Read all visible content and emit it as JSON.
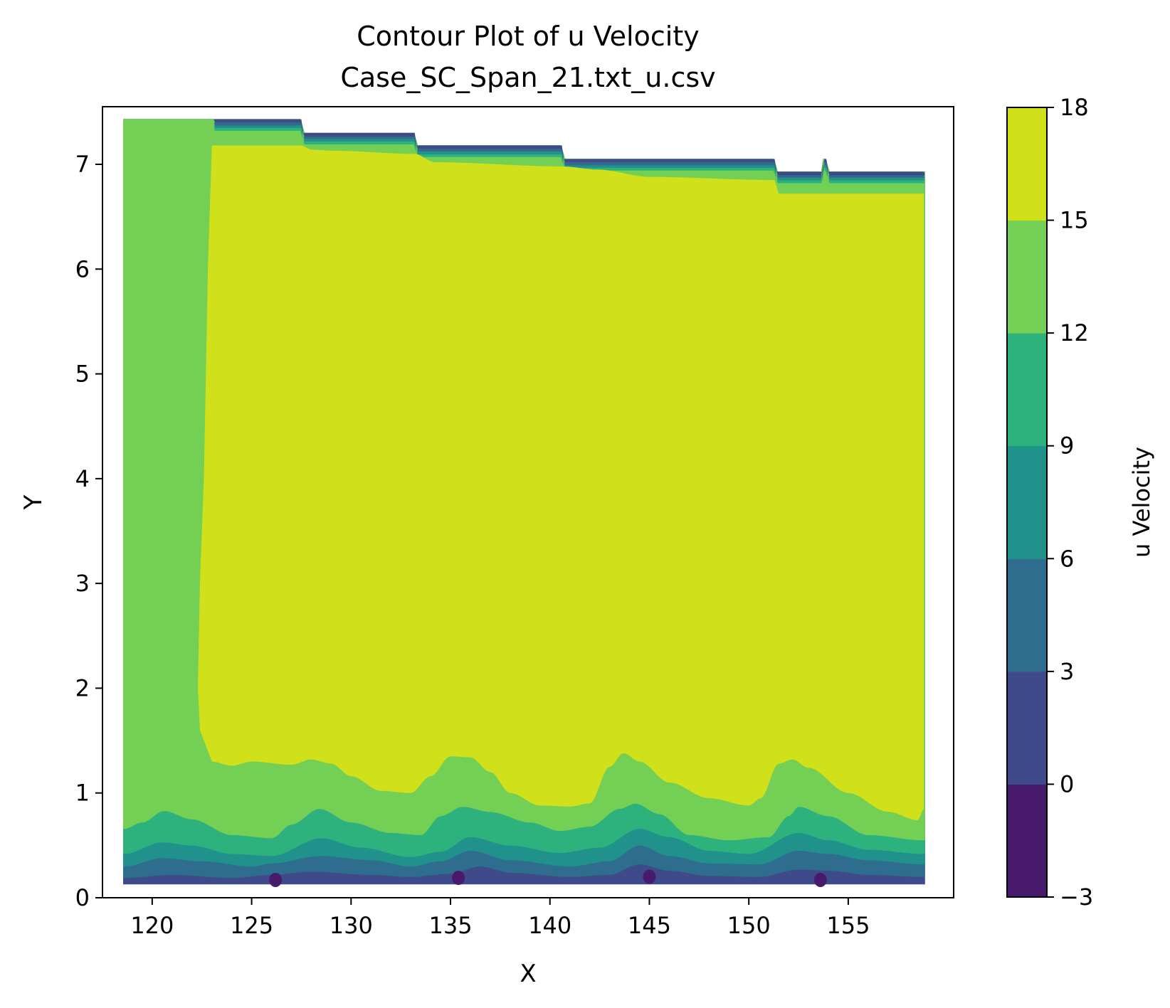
{
  "chart_data": {
    "type": "contour",
    "title": "Contour Plot of u Velocity",
    "subtitle": "Case_SC_Span_21.txt_u.csv",
    "xlabel": "X",
    "ylabel": "Y",
    "colorbar_label": "u Velocity",
    "xlim": [
      117.5,
      160.3
    ],
    "ylim": [
      0,
      7.55
    ],
    "x_ticks": [
      120,
      125,
      130,
      135,
      140,
      145,
      150,
      155
    ],
    "y_ticks": [
      0,
      1,
      2,
      3,
      4,
      5,
      6,
      7
    ],
    "colorbar_ticks": [
      -3,
      0,
      3,
      6,
      9,
      12,
      15,
      18
    ],
    "levels": [
      -3,
      0,
      3,
      6,
      9,
      12,
      15,
      18
    ],
    "level_colors": [
      "#481a6c",
      "#3e4a89",
      "#2e6d8e",
      "#21918c",
      "#2db27d",
      "#74d055",
      "#d0e11c"
    ],
    "regions": [
      {
        "range": [
          -3,
          0
        ],
        "description": "small patches near y=0.15-0.25 at x~126, 135-136, 145, 153"
      },
      {
        "range": [
          0,
          3
        ],
        "description": "thin bottom layer y~0.15-0.3; top edge step y~7.3-6.9"
      },
      {
        "range": [
          3,
          15
        ],
        "description": "wavy near-wall bands y~0.15-1.35 with bumps at x~128, 135, 143.5, 152"
      },
      {
        "range": [
          15,
          18
        ],
        "description": "core region x~123-158.8, y~1.0-7.2"
      }
    ],
    "colormap": "viridis"
  }
}
